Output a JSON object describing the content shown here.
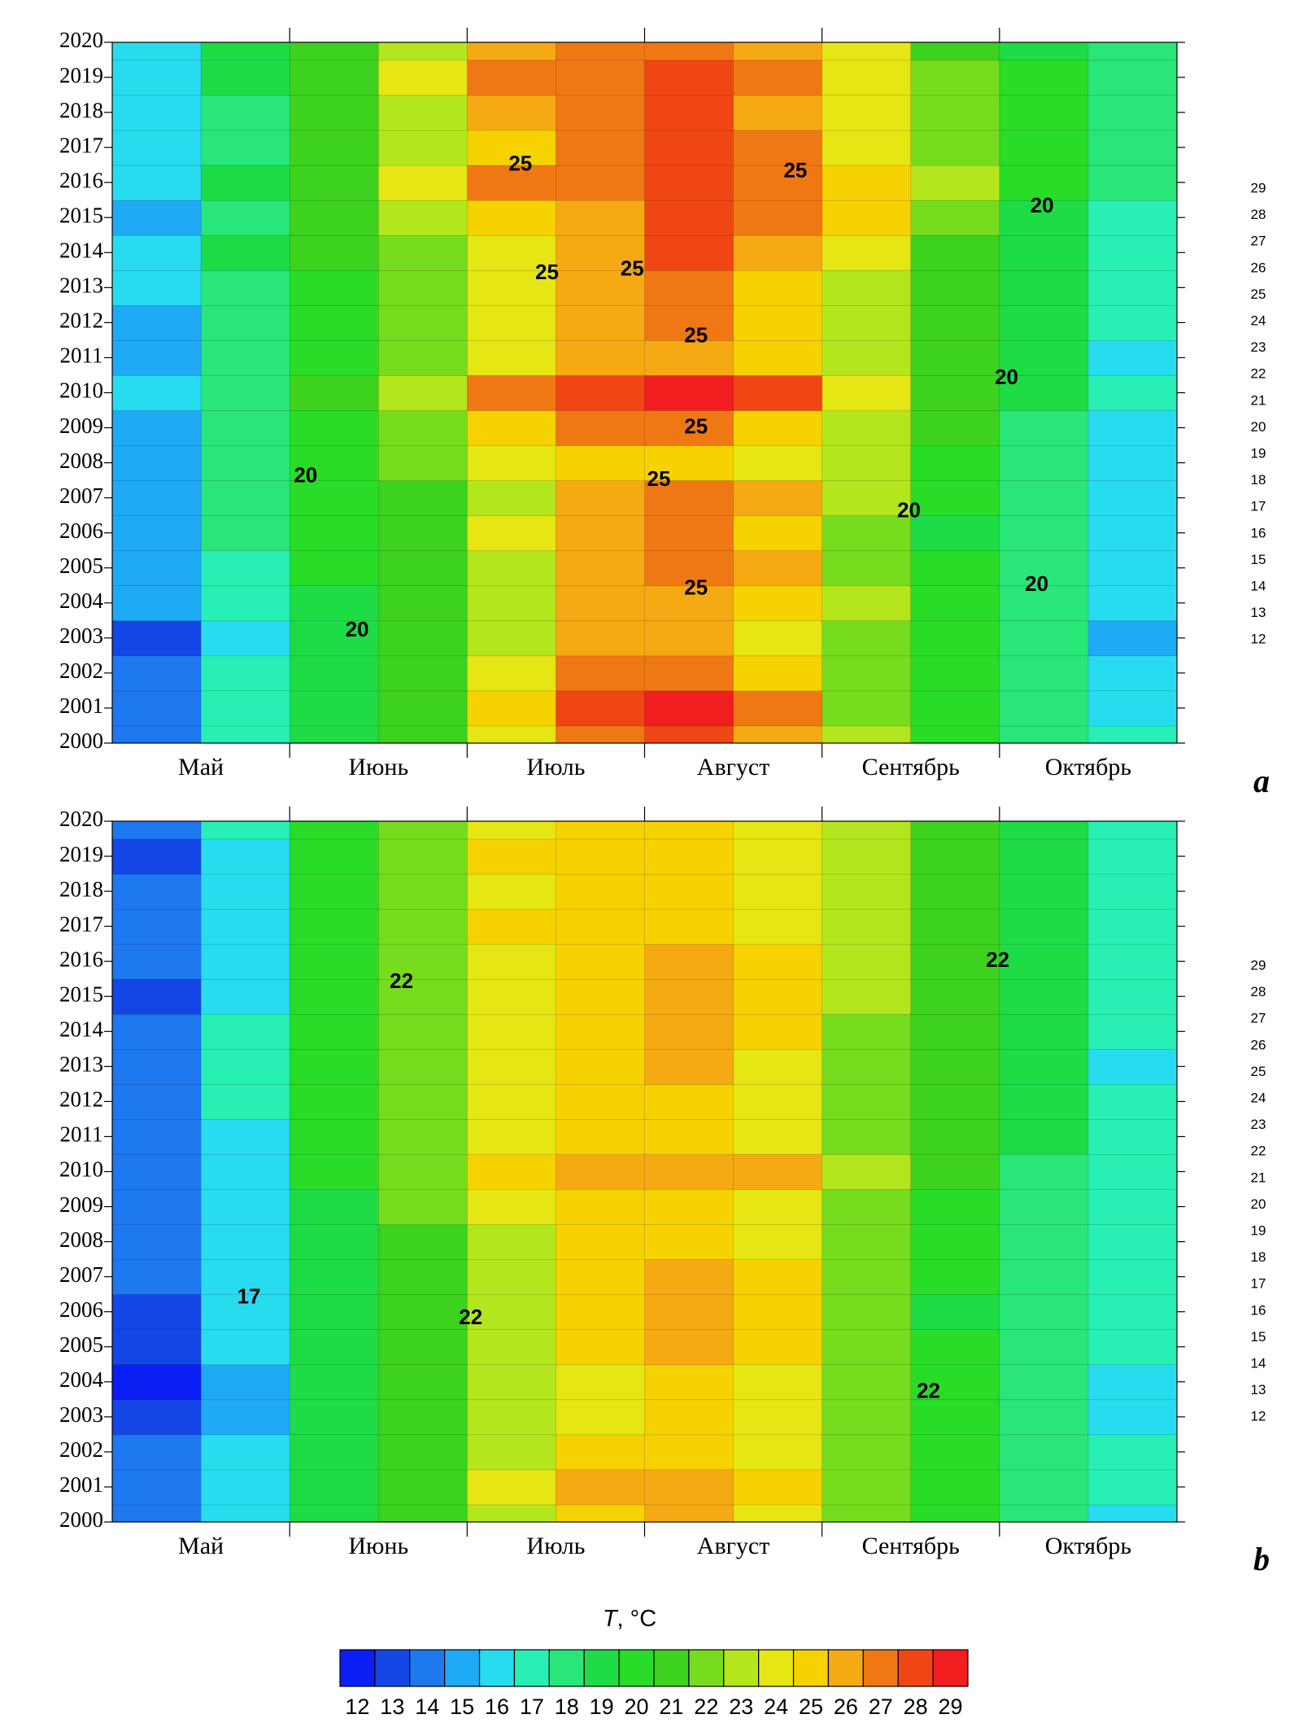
{
  "chart_data": [
    {
      "type": "heatmap",
      "panel_label": "a",
      "categories": [
        "Май",
        "Июнь",
        "Июль",
        "Август",
        "Сентябрь",
        "Октябрь"
      ],
      "y": [
        2000,
        2001,
        2002,
        2003,
        2004,
        2005,
        2006,
        2007,
        2008,
        2009,
        2010,
        2011,
        2012,
        2013,
        2014,
        2015,
        2016,
        2017,
        2018,
        2019,
        2020
      ],
      "ylim": [
        2000,
        2020
      ],
      "yticks": [
        2000,
        2001,
        2002,
        2003,
        2004,
        2005,
        2006,
        2007,
        2008,
        2009,
        2010,
        2011,
        2012,
        2013,
        2014,
        2015,
        2016,
        2017,
        2018,
        2019,
        2020
      ],
      "z": [
        [
          14,
          17,
          19,
          21,
          24,
          27,
          28,
          26,
          23,
          20,
          18,
          17
        ],
        [
          14,
          17,
          19,
          21,
          25,
          28,
          29,
          27,
          22,
          20,
          18,
          16
        ],
        [
          14,
          17,
          19,
          21,
          24,
          27,
          27,
          25,
          22,
          20,
          18,
          16
        ],
        [
          13,
          16,
          19,
          21,
          23,
          26,
          26,
          24,
          22,
          20,
          18,
          15
        ],
        [
          15,
          17,
          19,
          21,
          23,
          26,
          26,
          25,
          23,
          20,
          18,
          16
        ],
        [
          15,
          17,
          20,
          21,
          23,
          26,
          27,
          26,
          22,
          20,
          18,
          16
        ],
        [
          15,
          18,
          20,
          21,
          24,
          26,
          27,
          25,
          22,
          19,
          18,
          16
        ],
        [
          15,
          18,
          20,
          21,
          23,
          26,
          27,
          26,
          23,
          20,
          18,
          16
        ],
        [
          15,
          18,
          20,
          22,
          24,
          25,
          25,
          24,
          23,
          20,
          18,
          16
        ],
        [
          15,
          18,
          20,
          22,
          25,
          27,
          27,
          25,
          23,
          21,
          18,
          16
        ],
        [
          16,
          18,
          21,
          23,
          27,
          28,
          29,
          28,
          24,
          21,
          19,
          17
        ],
        [
          15,
          18,
          20,
          22,
          24,
          26,
          26,
          25,
          23,
          21,
          19,
          16
        ],
        [
          15,
          18,
          20,
          22,
          24,
          26,
          27,
          25,
          23,
          21,
          19,
          17
        ],
        [
          16,
          18,
          20,
          22,
          24,
          26,
          27,
          25,
          23,
          21,
          19,
          17
        ],
        [
          16,
          19,
          21,
          22,
          24,
          26,
          28,
          26,
          24,
          21,
          19,
          17
        ],
        [
          15,
          18,
          21,
          23,
          25,
          26,
          28,
          27,
          25,
          22,
          19,
          17
        ],
        [
          16,
          19,
          21,
          24,
          27,
          27,
          28,
          27,
          25,
          23,
          20,
          18
        ],
        [
          16,
          18,
          21,
          23,
          25,
          27,
          28,
          27,
          24,
          22,
          20,
          18
        ],
        [
          16,
          18,
          21,
          23,
          26,
          27,
          28,
          26,
          24,
          22,
          20,
          18
        ],
        [
          16,
          19,
          21,
          24,
          27,
          27,
          28,
          27,
          24,
          22,
          20,
          18
        ],
        [
          16,
          19,
          21,
          23,
          26,
          27,
          27,
          26,
          24,
          21,
          19,
          18
        ]
      ],
      "annotations": [
        {
          "text": "25",
          "x": 2.3,
          "y": 2016.5
        },
        {
          "text": "25",
          "x": 3.85,
          "y": 2016.3
        },
        {
          "text": "20",
          "x": 5.24,
          "y": 2015.3
        },
        {
          "text": "25",
          "x": 2.45,
          "y": 2013.4
        },
        {
          "text": "25",
          "x": 2.93,
          "y": 2013.5
        },
        {
          "text": "25",
          "x": 3.29,
          "y": 2011.6
        },
        {
          "text": "20",
          "x": 5.04,
          "y": 2010.4
        },
        {
          "text": "25",
          "x": 3.29,
          "y": 2009.0
        },
        {
          "text": "20",
          "x": 1.09,
          "y": 2007.6
        },
        {
          "text": "25",
          "x": 3.08,
          "y": 2007.5
        },
        {
          "text": "20",
          "x": 4.49,
          "y": 2006.6
        },
        {
          "text": "25",
          "x": 3.29,
          "y": 2004.4
        },
        {
          "text": "20",
          "x": 5.21,
          "y": 2004.5
        },
        {
          "text": "20",
          "x": 1.38,
          "y": 2003.2
        }
      ],
      "side_labels": [
        29,
        28,
        27,
        26,
        25,
        24,
        23,
        22,
        21,
        20,
        19,
        18,
        17,
        16,
        15,
        14,
        13,
        12
      ]
    },
    {
      "type": "heatmap",
      "panel_label": "b",
      "categories": [
        "Май",
        "Июнь",
        "Июль",
        "Август",
        "Сентябрь",
        "Октябрь"
      ],
      "y": [
        2000,
        2001,
        2002,
        2003,
        2004,
        2005,
        2006,
        2007,
        2008,
        2009,
        2010,
        2011,
        2012,
        2013,
        2014,
        2015,
        2016,
        2017,
        2018,
        2019,
        2020
      ],
      "ylim": [
        2000,
        2020
      ],
      "yticks": [
        2000,
        2001,
        2002,
        2003,
        2004,
        2005,
        2006,
        2007,
        2008,
        2009,
        2010,
        2011,
        2012,
        2013,
        2014,
        2015,
        2016,
        2017,
        2018,
        2019,
        2020
      ],
      "z": [
        [
          14,
          16,
          19,
          21,
          23,
          25,
          26,
          24,
          22,
          20,
          18,
          16
        ],
        [
          14,
          16,
          19,
          21,
          24,
          26,
          26,
          25,
          22,
          20,
          18,
          17
        ],
        [
          14,
          16,
          19,
          21,
          23,
          25,
          25,
          24,
          22,
          20,
          18,
          17
        ],
        [
          13,
          15,
          19,
          21,
          23,
          24,
          25,
          24,
          22,
          20,
          18,
          16
        ],
        [
          12,
          15,
          19,
          21,
          23,
          24,
          25,
          24,
          22,
          20,
          18,
          16
        ],
        [
          13,
          16,
          19,
          21,
          23,
          25,
          26,
          25,
          22,
          20,
          18,
          17
        ],
        [
          13,
          16,
          19,
          21,
          23,
          25,
          26,
          25,
          22,
          19,
          18,
          17
        ],
        [
          14,
          16,
          19,
          21,
          23,
          25,
          26,
          25,
          22,
          20,
          18,
          17
        ],
        [
          14,
          16,
          19,
          21,
          23,
          25,
          25,
          24,
          22,
          20,
          18,
          17
        ],
        [
          14,
          16,
          19,
          22,
          24,
          25,
          25,
          24,
          22,
          20,
          18,
          17
        ],
        [
          14,
          16,
          20,
          22,
          25,
          26,
          26,
          26,
          23,
          21,
          18,
          17
        ],
        [
          14,
          16,
          20,
          22,
          24,
          25,
          25,
          24,
          22,
          21,
          19,
          17
        ],
        [
          14,
          17,
          20,
          22,
          24,
          25,
          25,
          24,
          22,
          21,
          19,
          17
        ],
        [
          14,
          17,
          20,
          22,
          24,
          25,
          26,
          24,
          22,
          21,
          19,
          16
        ],
        [
          14,
          17,
          20,
          22,
          24,
          25,
          26,
          25,
          22,
          21,
          19,
          17
        ],
        [
          13,
          16,
          20,
          22,
          24,
          25,
          26,
          25,
          23,
          21,
          19,
          17
        ],
        [
          14,
          16,
          20,
          22,
          24,
          25,
          26,
          25,
          23,
          21,
          19,
          17
        ],
        [
          14,
          16,
          20,
          22,
          25,
          25,
          25,
          24,
          23,
          21,
          19,
          17
        ],
        [
          14,
          16,
          20,
          22,
          24,
          25,
          25,
          24,
          23,
          21,
          19,
          17
        ],
        [
          13,
          16,
          20,
          22,
          25,
          25,
          25,
          24,
          23,
          21,
          19,
          17
        ],
        [
          14,
          17,
          20,
          22,
          24,
          25,
          25,
          24,
          23,
          21,
          19,
          17
        ]
      ],
      "annotations": [
        {
          "text": "22",
          "x": 1.63,
          "y": 2015.4
        },
        {
          "text": "22",
          "x": 4.99,
          "y": 2016.0
        },
        {
          "text": "17",
          "x": 0.77,
          "y": 2006.4
        },
        {
          "text": "22",
          "x": 2.02,
          "y": 2005.8
        },
        {
          "text": "22",
          "x": 4.6,
          "y": 2003.7
        }
      ],
      "side_labels": [
        29,
        28,
        27,
        26,
        25,
        24,
        23,
        22,
        21,
        20,
        19,
        18,
        17,
        16,
        15,
        14,
        13,
        12
      ]
    }
  ],
  "colorbar": {
    "symbol": "T",
    "unit": ", °C",
    "levels": [
      12,
      13,
      14,
      15,
      16,
      17,
      18,
      19,
      20,
      21,
      22,
      23,
      24,
      25,
      26,
      27,
      28,
      29
    ],
    "colors": [
      "#0a1ef5",
      "#1446e6",
      "#1e78f0",
      "#1eaaf5",
      "#28dcf0",
      "#28f0b4",
      "#28e678",
      "#1edc46",
      "#28dc28",
      "#3cd21e",
      "#78dc1e",
      "#b4e61e",
      "#e6e614",
      "#f5d200",
      "#f5aa14",
      "#f07814",
      "#f04614",
      "#f01e1e"
    ]
  }
}
